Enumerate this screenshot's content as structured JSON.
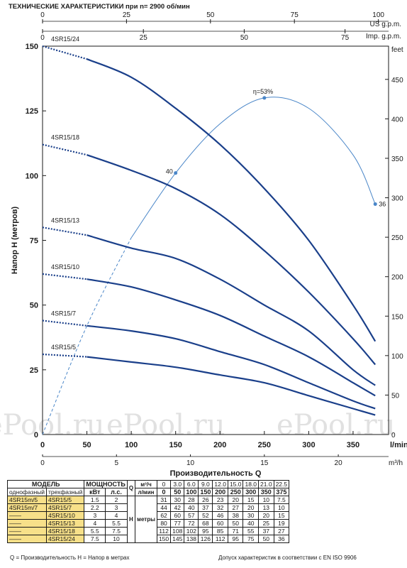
{
  "title": "ТЕХНИЧЕСКИЕ ХАРАКТЕРИСТИКИ при n= 2900 об/мин",
  "watermark": "ePool.ru",
  "footer_left": "Q = Производительность   H = Напор в метрах",
  "footer_right": "Допуск характеристик в соответствии с EN ISO 9906",
  "colors": {
    "curve": "#1a3f8a",
    "efficiency": "#4a86c8",
    "table_model_bg": "#f7e089"
  },
  "chart_data": {
    "type": "line",
    "title": "ТЕХНИЧЕСКИЕ ХАРАКТЕРИСТИКИ при n= 2900 об/мин",
    "xlabel": "Производительность Q",
    "ylabel": "Напор H (метров)",
    "xlim": [
      0,
      390
    ],
    "ylim": [
      0,
      150
    ],
    "grid": false,
    "axes": {
      "x_lmin": {
        "unit": "l/min",
        "ticks": [
          "0",
          "50",
          "100",
          "150",
          "200",
          "250",
          "300",
          "350"
        ]
      },
      "x_m3h": {
        "unit": "m³/h",
        "ticks": [
          "0",
          "5",
          "10",
          "15",
          "20"
        ]
      },
      "x_usgpm": {
        "unit": "US g.p.m.",
        "ticks": [
          "0",
          "25",
          "50",
          "75",
          "100"
        ]
      },
      "x_impgpm": {
        "unit": "Imp. g.p.m.",
        "ticks": [
          "0",
          "25",
          "50",
          "75"
        ]
      },
      "y_m": {
        "unit": "",
        "ticks": [
          "0",
          "25",
          "50",
          "75",
          "100",
          "125",
          "150"
        ]
      },
      "y_feet": {
        "unit": "feet",
        "ticks": [
          "0",
          "50",
          "100",
          "150",
          "200",
          "250",
          "300",
          "350",
          "400",
          "450"
        ]
      }
    },
    "x": [
      0,
      50,
      100,
      150,
      200,
      250,
      300,
      350,
      375
    ],
    "series": [
      {
        "name": "4SR15/24",
        "values": [
          150,
          145,
          138,
          126,
          112,
          95,
          75,
          50,
          36
        ]
      },
      {
        "name": "4SR15/18",
        "values": [
          112,
          108,
          102,
          95,
          85,
          71,
          55,
          37,
          27
        ]
      },
      {
        "name": "4SR15/13",
        "values": [
          80,
          77,
          72,
          68,
          60,
          50,
          40,
          25,
          19
        ]
      },
      {
        "name": "4SR15/10",
        "values": [
          62,
          60,
          57,
          52,
          46,
          38,
          30,
          20,
          15
        ]
      },
      {
        "name": "4SR15/7",
        "values": [
          44,
          42,
          40,
          37,
          32,
          27,
          20,
          13,
          10
        ]
      },
      {
        "name": "4SR15/5",
        "values": [
          31,
          30,
          28,
          26,
          23,
          20,
          15,
          10,
          7.5
        ]
      }
    ],
    "efficiency": {
      "label_peak": "η=53%",
      "label_left": "40",
      "label_right": "36",
      "x": [
        0,
        50,
        100,
        150,
        200,
        250,
        300,
        350,
        375
      ],
      "values": [
        0,
        42,
        76,
        101,
        120,
        130,
        126,
        108,
        89
      ]
    }
  },
  "table": {
    "header": {
      "model": "МОДЕЛЬ",
      "power": "МОЩНОСТЬ",
      "single_phase": "однофазный",
      "three_phase": "трехфазный",
      "kw": "кВт",
      "hp": "л.с.",
      "q": "Q",
      "m3h": "м³/ч",
      "lmin": "л/мин",
      "h": "H",
      "meters": "метры"
    },
    "q_m3h": [
      "0",
      "3.0",
      "6.0",
      "9.0",
      "12.0",
      "15.0",
      "18.0",
      "21.0",
      "22.5"
    ],
    "q_lmin": [
      "0",
      "50",
      "100",
      "150",
      "200",
      "250",
      "300",
      "350",
      "375"
    ],
    "rows": [
      {
        "single": "4SR15m/5",
        "three": "4SR15/5",
        "kw": "1.5",
        "hp": "2",
        "h": [
          "31",
          "30",
          "28",
          "26",
          "23",
          "20",
          "15",
          "10",
          "7.5"
        ]
      },
      {
        "single": "4SR15m/7",
        "three": "4SR15/7",
        "kw": "2.2",
        "hp": "3",
        "h": [
          "44",
          "42",
          "40",
          "37",
          "32",
          "27",
          "20",
          "13",
          "10"
        ]
      },
      {
        "single": "——",
        "three": "4SR15/10",
        "kw": "3",
        "hp": "4",
        "h": [
          "62",
          "60",
          "57",
          "52",
          "46",
          "38",
          "30",
          "20",
          "15"
        ]
      },
      {
        "single": "——",
        "three": "4SR15/13",
        "kw": "4",
        "hp": "5.5",
        "h": [
          "80",
          "77",
          "72",
          "68",
          "60",
          "50",
          "40",
          "25",
          "19"
        ]
      },
      {
        "single": "——",
        "three": "4SR15/18",
        "kw": "5.5",
        "hp": "7.5",
        "h": [
          "112",
          "108",
          "102",
          "95",
          "85",
          "71",
          "55",
          "37",
          "27"
        ]
      },
      {
        "single": "——",
        "three": "4SR15/24",
        "kw": "7.5",
        "hp": "10",
        "h": [
          "150",
          "145",
          "138",
          "126",
          "112",
          "95",
          "75",
          "50",
          "36"
        ]
      }
    ]
  }
}
